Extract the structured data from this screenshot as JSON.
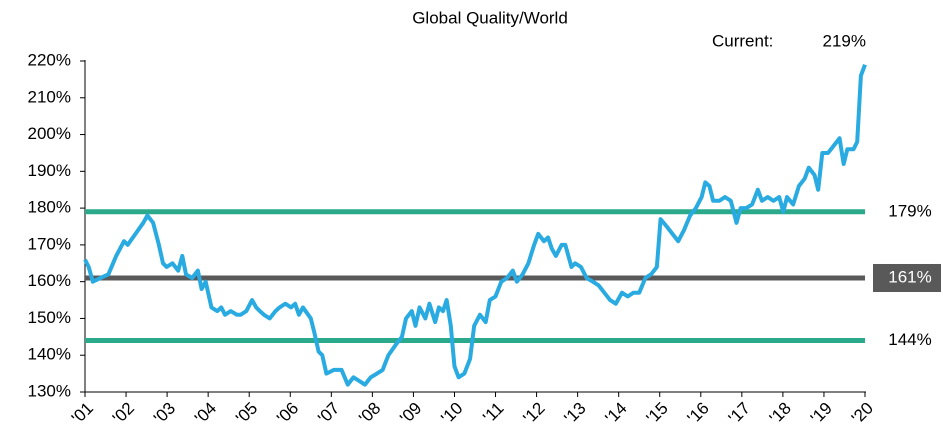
{
  "chart_data": {
    "type": "line",
    "title": "Global Quality/World",
    "annotation": {
      "text": "Current:",
      "label": "219%"
    },
    "xlim": [
      2001,
      2020
    ],
    "xticks": [
      {
        "value": 2001,
        "label": "'01"
      },
      {
        "value": 2002,
        "label": "'02"
      },
      {
        "value": 2003,
        "label": "'03"
      },
      {
        "value": 2004,
        "label": "'04"
      },
      {
        "value": 2005,
        "label": "'05"
      },
      {
        "value": 2006,
        "label": "'06"
      },
      {
        "value": 2007,
        "label": "'07"
      },
      {
        "value": 2008,
        "label": "'08"
      },
      {
        "value": 2009,
        "label": "'09"
      },
      {
        "value": 2010,
        "label": "'10"
      },
      {
        "value": 2011,
        "label": "'11"
      },
      {
        "value": 2012,
        "label": "'12"
      },
      {
        "value": 2013,
        "label": "'13"
      },
      {
        "value": 2014,
        "label": "'14"
      },
      {
        "value": 2015,
        "label": "'15"
      },
      {
        "value": 2016,
        "label": "'16"
      },
      {
        "value": 2017,
        "label": "'17"
      },
      {
        "value": 2018,
        "label": "'18"
      },
      {
        "value": 2019,
        "label": "'19"
      },
      {
        "value": 2020,
        "label": "'20"
      }
    ],
    "ylim": [
      130,
      220
    ],
    "yticks": [
      {
        "value": 130,
        "label": "130%"
      },
      {
        "value": 140,
        "label": "140%"
      },
      {
        "value": 150,
        "label": "150%"
      },
      {
        "value": 160,
        "label": "160%"
      },
      {
        "value": 170,
        "label": "170%"
      },
      {
        "value": 180,
        "label": "180%"
      },
      {
        "value": 190,
        "label": "190%"
      },
      {
        "value": 200,
        "label": "200%"
      },
      {
        "value": 210,
        "label": "210%"
      },
      {
        "value": 220,
        "label": "220%"
      }
    ],
    "reference_lines": [
      {
        "value": 179,
        "label": "179%",
        "color": "#2aa98b",
        "boxed": false
      },
      {
        "value": 161,
        "label": "161%",
        "color": "#595959",
        "boxed": true
      },
      {
        "value": 144,
        "label": "144%",
        "color": "#2aa98b",
        "boxed": false
      }
    ],
    "x": [
      2001,
      2001.09,
      2001.19,
      2001.38,
      2001.57,
      2001.76,
      2001.95,
      2002.04,
      2002.23,
      2002.42,
      2002.52,
      2002.66,
      2002.8,
      2002.9,
      2002.99,
      2003.13,
      2003.27,
      2003.37,
      2003.46,
      2003.61,
      2003.75,
      2003.84,
      2003.94,
      2004.08,
      2004.22,
      2004.32,
      2004.41,
      2004.55,
      2004.7,
      2004.79,
      2004.93,
      2005.07,
      2005.17,
      2005.26,
      2005.36,
      2005.5,
      2005.64,
      2005.74,
      2005.88,
      2006.02,
      2006.12,
      2006.21,
      2006.31,
      2006.5,
      2006.59,
      2006.69,
      2006.78,
      2006.88,
      2007.06,
      2007.25,
      2007.4,
      2007.54,
      2007.68,
      2007.82,
      2007.96,
      2008.11,
      2008.25,
      2008.39,
      2008.58,
      2008.72,
      2008.82,
      2008.96,
      2009.05,
      2009.15,
      2009.29,
      2009.39,
      2009.53,
      2009.62,
      2009.72,
      2009.81,
      2009.91,
      2010,
      2010.1,
      2010.24,
      2010.38,
      2010.48,
      2010.62,
      2010.76,
      2010.86,
      2011,
      2011.14,
      2011.28,
      2011.42,
      2011.52,
      2011.66,
      2011.8,
      2011.94,
      2012.04,
      2012.18,
      2012.28,
      2012.37,
      2012.47,
      2012.61,
      2012.7,
      2012.85,
      2012.94,
      2013.08,
      2013.22,
      2013.37,
      2013.51,
      2013.65,
      2013.79,
      2013.93,
      2014.08,
      2014.22,
      2014.36,
      2014.5,
      2014.65,
      2014.79,
      2014.93,
      2015.02,
      2015.17,
      2015.31,
      2015.45,
      2015.59,
      2015.74,
      2015.88,
      2016.02,
      2016.11,
      2016.21,
      2016.3,
      2016.45,
      2016.59,
      2016.73,
      2016.87,
      2016.97,
      2017.11,
      2017.25,
      2017.39,
      2017.49,
      2017.63,
      2017.77,
      2017.91,
      2018.01,
      2018.1,
      2018.25,
      2018.39,
      2018.53,
      2018.63,
      2018.77,
      2018.86,
      2018.96,
      2019.1,
      2019.24,
      2019.38,
      2019.48,
      2019.57,
      2019.72,
      2019.81,
      2019.9,
      2020
    ],
    "series": [
      {
        "color": "#29abe2",
        "values": [
          166,
          164,
          160,
          161,
          162,
          167,
          171,
          170,
          173,
          176,
          178,
          176,
          170,
          165,
          164,
          165,
          163,
          167,
          162,
          161,
          163,
          158,
          160,
          153,
          152,
          153,
          151,
          152,
          151,
          151,
          152,
          155,
          153,
          152,
          151,
          150,
          152,
          153,
          154,
          153,
          154,
          151,
          153,
          150,
          146,
          141,
          140,
          135,
          136,
          136,
          132,
          134,
          133,
          132,
          134,
          135,
          136,
          140,
          143,
          145,
          150,
          152,
          148,
          153,
          150,
          154,
          149,
          153,
          152,
          155,
          148,
          137,
          134,
          135,
          139,
          148,
          151,
          149,
          155,
          156,
          160,
          161,
          163,
          160,
          162,
          165,
          170,
          173,
          171,
          172,
          169,
          167,
          170,
          170,
          164,
          165,
          164,
          161,
          160,
          159,
          157,
          155,
          154,
          157,
          156,
          157,
          157,
          161,
          162,
          164,
          177,
          175,
          173,
          171,
          174,
          178,
          180,
          183,
          187,
          186,
          182,
          182,
          183,
          182,
          176,
          180,
          180,
          181,
          185,
          182,
          183,
          182,
          183,
          179,
          183,
          181,
          186,
          188,
          191,
          189,
          185,
          195,
          195,
          197,
          199,
          192,
          196,
          196,
          198,
          216,
          219
        ]
      }
    ]
  }
}
